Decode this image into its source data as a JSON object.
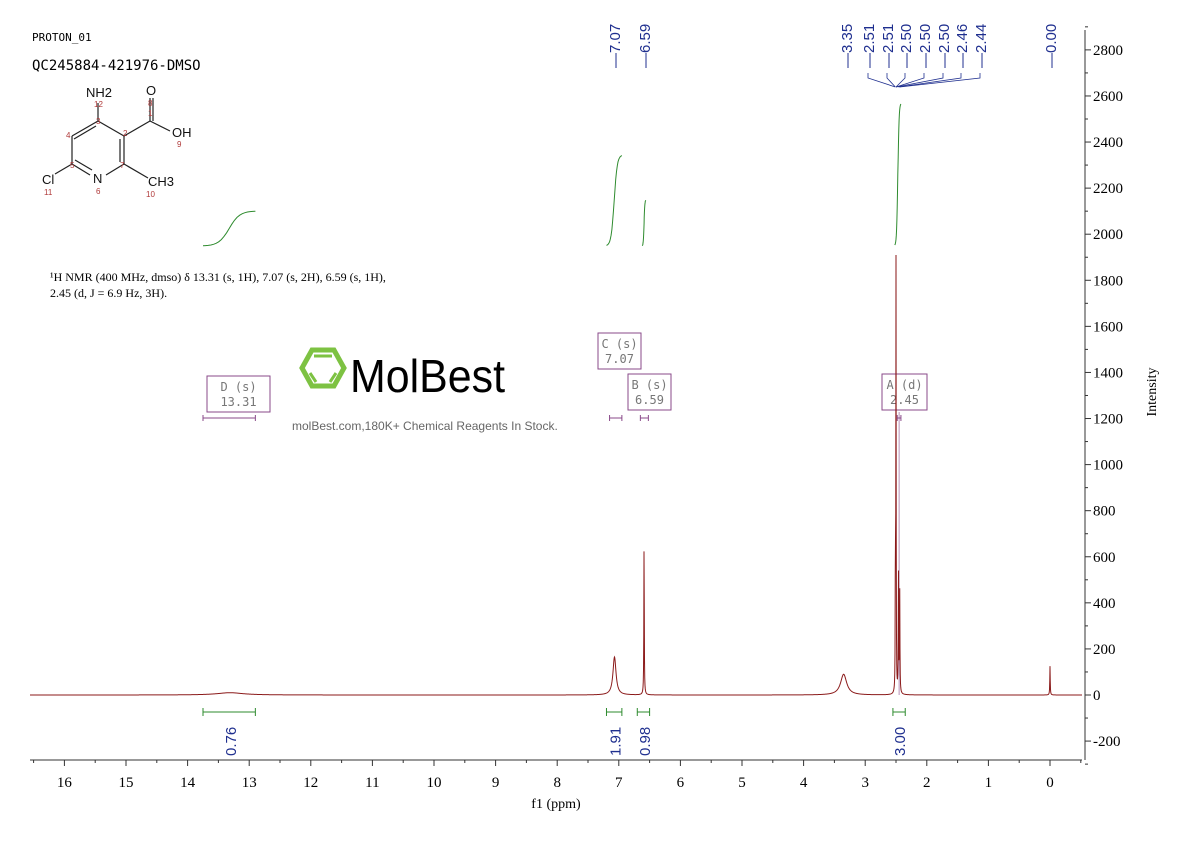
{
  "header": {
    "experiment": "PROTON_01",
    "sample": "QC245884-421976-DMSO"
  },
  "structure": {
    "atoms": {
      "nh2": "NH2",
      "o": "O",
      "oh": "OH",
      "cl": "Cl",
      "n": "N",
      "ch3": "CH3"
    },
    "numbers": [
      "1",
      "2",
      "3",
      "4",
      "5",
      "6",
      "7",
      "8",
      "9",
      "10",
      "11",
      "12"
    ]
  },
  "nmr_text": {
    "line1": "¹H NMR (400 MHz, dmso) δ 13.31 (s, 1H), 7.07 (s, 2H), 6.59 (s, 1H),",
    "line2": "2.45 (d, J = 6.9 Hz, 3H)."
  },
  "watermark": {
    "brand": "MolBest",
    "tagline": "molBest.com,180K+ Chemical Reagents In Stock.",
    "color": "#7dc242"
  },
  "chart_data": {
    "type": "line",
    "xlabel": "f1 (ppm)",
    "ylabel": "Intensity",
    "xlim": [
      16.5,
      -0.5
    ],
    "ylim": [
      -300,
      2900
    ],
    "x_reversed": true,
    "x_ticks": [
      "16",
      "15",
      "14",
      "13",
      "12",
      "11",
      "10",
      "9",
      "8",
      "7",
      "6",
      "5",
      "4",
      "3",
      "2",
      "1",
      "0"
    ],
    "y_ticks": [
      "2800",
      "2600",
      "2400",
      "2200",
      "2000",
      "1800",
      "1600",
      "1400",
      "1200",
      "1000",
      "800",
      "600",
      "400",
      "200",
      "0",
      "-200"
    ],
    "grid": false,
    "spectrum_color": "#8b1a1a",
    "integral_color": "#2e8b2e",
    "label_color": "#1f2f8f",
    "peaks": [
      {
        "ppm": 13.31,
        "intensity": 10,
        "width": 0.25
      },
      {
        "ppm": 7.07,
        "intensity": 165,
        "width": 0.03
      },
      {
        "ppm": 6.59,
        "intensity": 655,
        "width": 0.004
      },
      {
        "ppm": 3.35,
        "intensity": 90,
        "width": 0.06
      },
      {
        "ppm": 2.51,
        "intensity": 630,
        "width": 0.003
      },
      {
        "ppm": 2.5,
        "intensity": 1850,
        "width": 0.003
      },
      {
        "ppm": 2.46,
        "intensity": 520,
        "width": 0.004
      },
      {
        "ppm": 2.44,
        "intensity": 460,
        "width": 0.004
      },
      {
        "ppm": 0.0,
        "intensity": 125,
        "width": 0.004
      }
    ],
    "peak_labels": [
      "7.07",
      "6.59",
      "3.35",
      "2.51",
      "2.51",
      "2.50",
      "2.50",
      "2.50",
      "2.46",
      "2.44",
      "0.00"
    ],
    "multiplets": [
      {
        "id": "D (s)",
        "shift": "13.31",
        "ppm": 13.31,
        "range": [
          13.75,
          12.9
        ]
      },
      {
        "id": "C (s)",
        "shift": "7.07",
        "ppm": 7.07,
        "range": [
          7.15,
          6.95
        ]
      },
      {
        "id": "B (s)",
        "shift": "6.59",
        "ppm": 6.59,
        "range": [
          6.65,
          6.52
        ]
      },
      {
        "id": "A (d)",
        "shift": "2.45",
        "ppm": 2.45,
        "range": [
          2.48,
          2.42
        ]
      }
    ],
    "integrals": [
      {
        "value": "0.76",
        "ppm": 13.31,
        "range": [
          13.75,
          12.9
        ]
      },
      {
        "value": "1.91",
        "ppm": 7.07,
        "range": [
          7.2,
          6.95
        ]
      },
      {
        "value": "0.98",
        "ppm": 6.59,
        "range": [
          6.7,
          6.5
        ]
      },
      {
        "value": "3.00",
        "ppm": 2.45,
        "range": [
          2.55,
          2.35
        ]
      }
    ]
  }
}
